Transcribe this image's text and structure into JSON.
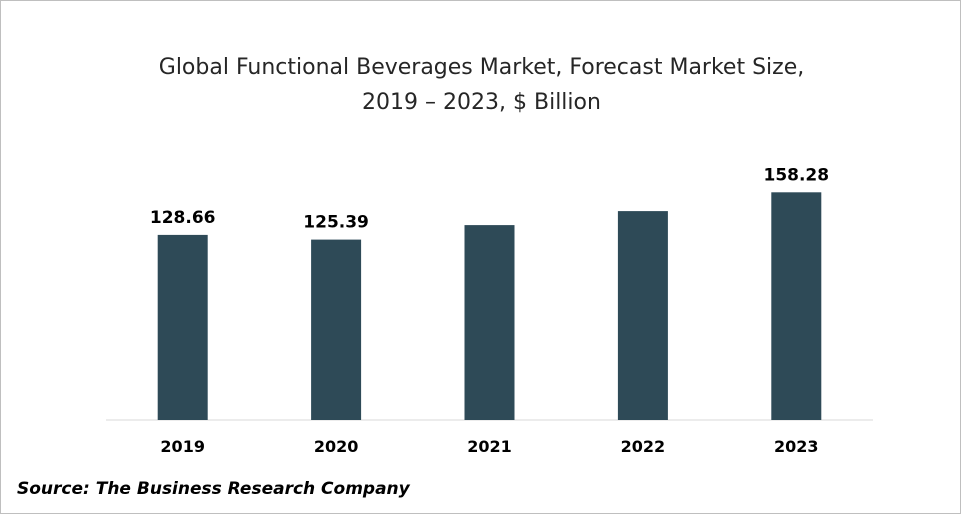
{
  "chart_data": {
    "type": "bar",
    "title_line1": "Global Functional Beverages Market, Forecast Market Size,",
    "title_line2": "2019 – 2023, $ Billion",
    "categories": [
      "2019",
      "2020",
      "2021",
      "2022",
      "2023"
    ],
    "values": [
      128.66,
      125.39,
      135.5,
      145.2,
      158.28
    ],
    "data_labels": [
      "128.66",
      "125.39",
      "",
      "",
      "158.28"
    ],
    "xlabel": "",
    "ylabel": "",
    "ylim": [
      0,
      170
    ],
    "grid": false,
    "legend": "none",
    "bar_color": "#2e4a57",
    "axis_color": "#d9d9d9"
  },
  "source": "Source: The Business Research Company"
}
